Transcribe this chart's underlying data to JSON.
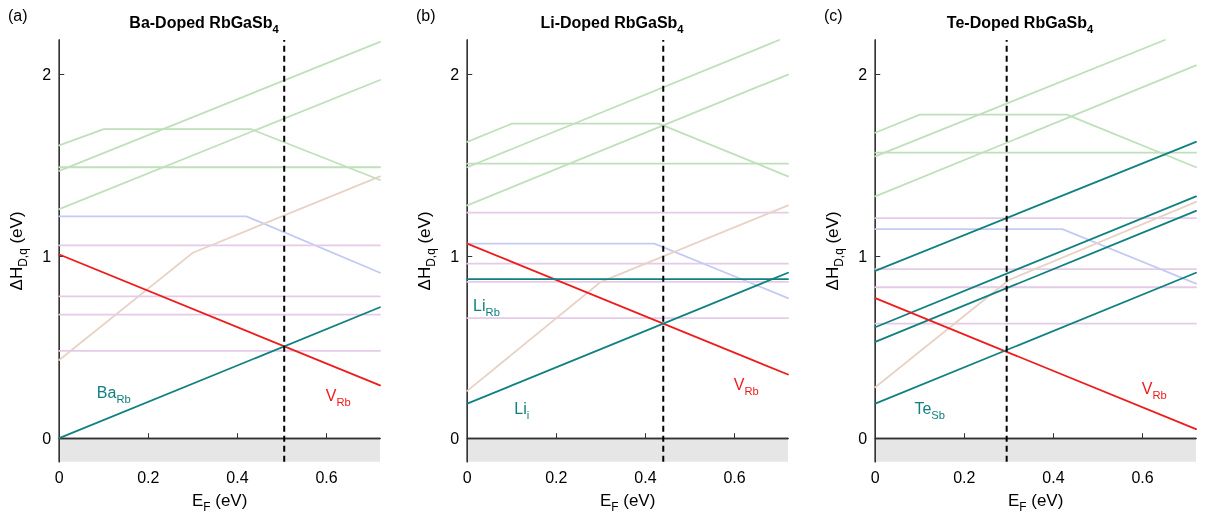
{
  "chart_data": [
    {
      "type": "line",
      "title": "Ba-Doped RbGaSb$_{4}$",
      "xlabel": "E$_{F}$ (eV)",
      "ylabel": "ΔH$_{D,q}$ (eV)",
      "xlim": [
        0,
        0.72
      ],
      "ylim": [
        -0.13,
        2.19
      ],
      "xticks": [
        0,
        0.2,
        0.4,
        0.6
      ],
      "yticks": [
        0,
        1,
        2
      ],
      "grid": false,
      "legend": false,
      "marker": "none",
      "line_style": "solid",
      "series": [
        {
          "color": "#bfe0bb",
          "x": [
            0,
            0.1,
            0.43,
            0.72
          ],
          "values": [
            1.61,
            1.7,
            1.7,
            1.42
          ]
        },
        {
          "color": "#bfe0bb",
          "x": [
            0,
            0.72
          ],
          "values": [
            1.47,
            2.18
          ]
        },
        {
          "color": "#bfe0bb",
          "x": [
            0,
            0.72
          ],
          "values": [
            1.26,
            1.97
          ]
        },
        {
          "color": "#bfe0bb",
          "x": [
            0,
            0.72
          ],
          "values": [
            1.49,
            1.49
          ]
        },
        {
          "color": "#c3cbf5",
          "x": [
            0,
            0.42,
            0.72
          ],
          "values": [
            1.22,
            1.22,
            0.91
          ]
        },
        {
          "color": "#e8d2c6",
          "x": [
            0,
            0.3,
            0.72
          ],
          "values": [
            0.43,
            1.02,
            1.44
          ]
        },
        {
          "color": "#e6cbe8",
          "x": [
            0,
            0.72
          ],
          "values": [
            1.06,
            1.06
          ]
        },
        {
          "color": "#e6cbe8",
          "x": [
            0,
            0.72
          ],
          "values": [
            0.78,
            0.78
          ]
        },
        {
          "color": "#e6cbe8",
          "x": [
            0,
            0.72
          ],
          "values": [
            0.68,
            0.68
          ]
        },
        {
          "color": "#e6cbe8",
          "x": [
            0,
            0.72
          ],
          "values": [
            0.48,
            0.48
          ]
        },
        {
          "name": "V$_{Rb}$",
          "color": "#ee1c1c",
          "x": [
            0,
            0.72
          ],
          "values": [
            1.01,
            0.29
          ]
        },
        {
          "name": "Ba$_{Rb}$",
          "color": "#108080",
          "x": [
            0,
            0.72
          ],
          "values": [
            0,
            0.72
          ]
        }
      ],
      "ref_lines": [
        {
          "axis": "x",
          "value": 0.505,
          "color": "#000000",
          "line_style": "dashed"
        }
      ],
      "bands": [
        {
          "axis": "y",
          "from": -0.13,
          "to": 0,
          "color": "#e6e6e6"
        }
      ],
      "annotations": [
        "(a)"
      ]
    },
    {
      "type": "line",
      "title": "Li-Doped RbGaSb$_{4}$",
      "xlabel": "E$_{F}$ (eV)",
      "ylabel": "ΔH$_{D,q}$ (eV)",
      "xlim": [
        0,
        0.72
      ],
      "ylim": [
        -0.13,
        2.19
      ],
      "xticks": [
        0,
        0.2,
        0.4,
        0.6
      ],
      "yticks": [
        0,
        1,
        2
      ],
      "grid": false,
      "legend": false,
      "marker": "none",
      "line_style": "solid",
      "series": [
        {
          "color": "#bfe0bb",
          "x": [
            0,
            0.1,
            0.43,
            0.72
          ],
          "values": [
            1.63,
            1.73,
            1.73,
            1.44
          ]
        },
        {
          "color": "#bfe0bb",
          "x": [
            0,
            0.7
          ],
          "values": [
            1.49,
            2.19
          ]
        },
        {
          "color": "#bfe0bb",
          "x": [
            0,
            0.72
          ],
          "values": [
            1.28,
            2.0
          ]
        },
        {
          "color": "#bfe0bb",
          "x": [
            0,
            0.72
          ],
          "values": [
            1.51,
            1.51
          ]
        },
        {
          "color": "#e6cbe8",
          "x": [
            0,
            0.72
          ],
          "values": [
            1.24,
            1.24
          ]
        },
        {
          "color": "#e6cbe8",
          "x": [
            0,
            0.72
          ],
          "values": [
            0.96,
            0.96
          ]
        },
        {
          "color": "#e6cbe8",
          "x": [
            0,
            0.72
          ],
          "values": [
            0.86,
            0.86
          ]
        },
        {
          "color": "#e6cbe8",
          "x": [
            0,
            0.72
          ],
          "values": [
            0.66,
            0.66
          ]
        },
        {
          "color": "#c3cbf5",
          "x": [
            0,
            0.42,
            0.72
          ],
          "values": [
            1.07,
            1.07,
            0.77
          ]
        },
        {
          "color": "#e8d2c6",
          "x": [
            0,
            0.3,
            0.72
          ],
          "values": [
            0.26,
            0.86,
            1.28
          ]
        },
        {
          "name": "V$_{Rb}$",
          "color": "#ee1c1c",
          "x": [
            0,
            0.72
          ],
          "values": [
            1.07,
            0.35
          ]
        },
        {
          "name": "Li$_{Rb}$",
          "color": "#108080",
          "x": [
            0,
            0.72
          ],
          "values": [
            0.875,
            0.875
          ]
        },
        {
          "name": "Li$_{i}$",
          "color": "#108080",
          "x": [
            0,
            0.72
          ],
          "values": [
            0.19,
            0.91
          ]
        }
      ],
      "ref_lines": [
        {
          "axis": "x",
          "value": 0.44,
          "color": "#000000",
          "line_style": "dashed"
        }
      ],
      "bands": [
        {
          "axis": "y",
          "from": -0.13,
          "to": 0,
          "color": "#e6e6e6"
        }
      ],
      "annotations": [
        "(b)"
      ]
    },
    {
      "type": "line",
      "title": "Te-Doped RbGaSb$_{4}$",
      "xlabel": "E$_{F}$ (eV)",
      "ylabel": "ΔH$_{D,q}$ (eV)",
      "xlim": [
        0,
        0.72
      ],
      "ylim": [
        -0.13,
        2.19
      ],
      "xticks": [
        0,
        0.2,
        0.4,
        0.6
      ],
      "yticks": [
        0,
        1,
        2
      ],
      "grid": false,
      "legend": false,
      "marker": "none",
      "line_style": "solid",
      "series": [
        {
          "color": "#bfe0bb",
          "x": [
            0,
            0.1,
            0.43,
            0.72
          ],
          "values": [
            1.68,
            1.78,
            1.78,
            1.49
          ]
        },
        {
          "color": "#bfe0bb",
          "x": [
            0,
            0.65
          ],
          "values": [
            1.55,
            2.19
          ]
        },
        {
          "color": "#bfe0bb",
          "x": [
            0,
            0.72
          ],
          "values": [
            1.33,
            2.05
          ]
        },
        {
          "color": "#bfe0bb",
          "x": [
            0,
            0.72
          ],
          "values": [
            1.57,
            1.57
          ]
        },
        {
          "color": "#e6cbe8",
          "x": [
            0,
            0.72
          ],
          "values": [
            1.21,
            1.21
          ]
        },
        {
          "color": "#e6cbe8",
          "x": [
            0,
            0.72
          ],
          "values": [
            0.93,
            0.93
          ]
        },
        {
          "color": "#e6cbe8",
          "x": [
            0,
            0.72
          ],
          "values": [
            0.83,
            0.83
          ]
        },
        {
          "color": "#e6cbe8",
          "x": [
            0,
            0.72
          ],
          "values": [
            0.63,
            0.63
          ]
        },
        {
          "color": "#c3cbf5",
          "x": [
            0,
            0.42,
            0.72
          ],
          "values": [
            1.15,
            1.15,
            0.85
          ]
        },
        {
          "color": "#e8d2c6",
          "x": [
            0,
            0.3,
            0.72
          ],
          "values": [
            0.28,
            0.87,
            1.3
          ]
        },
        {
          "color": "#108080",
          "x": [
            0,
            0.72
          ],
          "values": [
            0.92,
            1.63
          ]
        },
        {
          "color": "#108080",
          "x": [
            0,
            0.72
          ],
          "values": [
            0.61,
            1.33
          ]
        },
        {
          "color": "#108080",
          "x": [
            0,
            0.72
          ],
          "values": [
            0.53,
            1.25
          ]
        },
        {
          "name": "V$_{Rb}$",
          "color": "#ee1c1c",
          "x": [
            0,
            0.72
          ],
          "values": [
            0.77,
            0.05
          ]
        },
        {
          "name": "Te$_{Sb}$",
          "color": "#108080",
          "x": [
            0,
            0.72
          ],
          "values": [
            0.19,
            0.91
          ]
        }
      ],
      "ref_lines": [
        {
          "axis": "x",
          "value": 0.295,
          "color": "#000000",
          "line_style": "dashed"
        }
      ],
      "bands": [
        {
          "axis": "y",
          "from": -0.13,
          "to": 0,
          "color": "#e6e6e6"
        }
      ],
      "annotations": [
        "(c)"
      ]
    }
  ]
}
